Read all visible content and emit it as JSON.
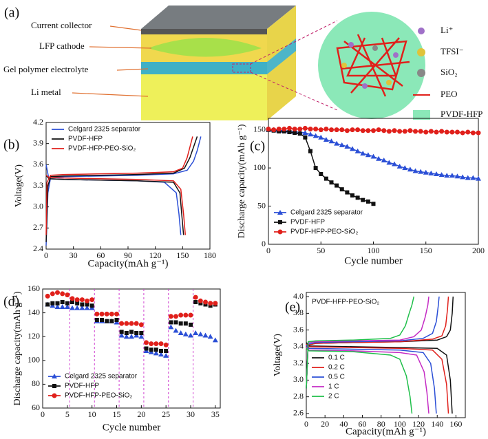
{
  "panel_a": {
    "label": "(a)",
    "layers": [
      "Current collector",
      "LFP cathode",
      "Gel polymer electrolyte",
      "Li metal"
    ],
    "legend": [
      "Li⁺",
      "TFSI⁻",
      "SiO₂",
      "PEO",
      "PVDF-HFP"
    ]
  },
  "chart_data": [
    {
      "type": "line",
      "label": "(b)",
      "xlabel": "Capacity(mAh g⁻¹)",
      "ylabel": "Voltage(V)",
      "xlim": [
        0,
        180
      ],
      "xticks": [
        0,
        30,
        60,
        90,
        120,
        150,
        180
      ],
      "ylim": [
        2.4,
        4.2
      ],
      "yticks": [
        2.4,
        2.7,
        {
          "value": 3,
          "label": "3.0"
        },
        3.3,
        3.6,
        3.9,
        4.2
      ],
      "legend": "upper left",
      "series": [
        {
          "name": "Celgard 2325 separator",
          "color": "#2b4fd6",
          "x": [
            0,
            2,
            5,
            20,
            60,
            100,
            140,
            155,
            162,
            166,
            170,
            null,
            0,
            3,
            20,
            60,
            100,
            130,
            143,
            146,
            148
          ],
          "values": [
            2.45,
            3.2,
            3.42,
            3.43,
            3.44,
            3.45,
            3.47,
            3.52,
            3.65,
            3.8,
            4.0,
            null,
            3.6,
            3.4,
            3.39,
            3.38,
            3.37,
            3.35,
            3.2,
            2.9,
            2.6
          ]
        },
        {
          "name": "PVDF-HFP",
          "color": "#111111",
          "x": [
            0,
            2,
            5,
            20,
            60,
            100,
            140,
            152,
            158,
            162,
            166,
            null,
            0,
            3,
            20,
            60,
            100,
            140,
            147,
            149,
            151
          ],
          "values": [
            2.5,
            3.3,
            3.43,
            3.44,
            3.45,
            3.46,
            3.48,
            3.55,
            3.7,
            3.85,
            4.0,
            null,
            3.45,
            3.4,
            3.39,
            3.38,
            3.37,
            3.35,
            3.2,
            2.9,
            2.6
          ]
        },
        {
          "name": "PVDF-HFP-PEO-SiO₂",
          "color": "#e0201b",
          "x": [
            0,
            1,
            5,
            20,
            60,
            100,
            140,
            150,
            155,
            158,
            161,
            null,
            0,
            3,
            20,
            60,
            100,
            140,
            148,
            151,
            153
          ],
          "values": [
            2.6,
            3.35,
            3.45,
            3.46,
            3.47,
            3.48,
            3.5,
            3.55,
            3.7,
            3.85,
            4.0,
            null,
            3.45,
            3.42,
            3.41,
            3.4,
            3.39,
            3.37,
            3.25,
            2.9,
            2.6
          ]
        }
      ]
    },
    {
      "type": "line",
      "label": "(c)",
      "xlabel": "Cycle number",
      "ylabel": "Discharge capacity(mAh g⁻¹)",
      "xlim": [
        0,
        200
      ],
      "xticks": [
        0,
        50,
        100,
        150,
        200
      ],
      "ylim": [
        0,
        165
      ],
      "yticks": [
        0,
        50,
        100,
        150
      ],
      "legend": "lower left",
      "series": [
        {
          "name": "Celgard 2325 separator",
          "color": "#2b4fd6",
          "marker": "triangle",
          "x": [
            0,
            5,
            10,
            15,
            20,
            25,
            30,
            35,
            40,
            45,
            50,
            55,
            60,
            65,
            70,
            75,
            80,
            85,
            90,
            95,
            100,
            105,
            110,
            115,
            120,
            125,
            130,
            135,
            140,
            145,
            150,
            155,
            160,
            165,
            170,
            175,
            180,
            185,
            190,
            195,
            200
          ],
          "values": [
            150,
            150,
            149,
            149,
            148,
            147,
            147,
            146,
            144,
            142,
            140,
            137,
            135,
            132,
            130,
            128,
            125,
            122,
            119,
            117,
            115,
            112,
            110,
            107,
            105,
            102,
            100,
            98,
            96,
            95,
            94,
            93,
            92,
            91,
            90,
            90,
            89,
            88,
            87,
            87,
            86
          ]
        },
        {
          "name": "PVDF-HFP",
          "color": "#111111",
          "marker": "square",
          "x": [
            0,
            5,
            10,
            15,
            20,
            25,
            30,
            35,
            40,
            45,
            50,
            55,
            60,
            65,
            70,
            75,
            80,
            85,
            90,
            95,
            100
          ],
          "values": [
            150,
            149,
            148,
            148,
            147,
            146,
            145,
            140,
            122,
            100,
            92,
            86,
            81,
            77,
            72,
            68,
            64,
            61,
            58,
            56,
            53
          ]
        },
        {
          "name": "PVDF-HFP-PEO-SiO₂",
          "color": "#e0201b",
          "marker": "circle",
          "x": [
            0,
            5,
            10,
            15,
            20,
            25,
            30,
            35,
            40,
            45,
            50,
            55,
            60,
            65,
            70,
            75,
            80,
            85,
            90,
            95,
            100,
            105,
            110,
            115,
            120,
            125,
            130,
            135,
            140,
            145,
            150,
            155,
            160,
            165,
            170,
            175,
            180,
            185,
            190,
            195,
            200
          ],
          "values": [
            151,
            150,
            151,
            151,
            152,
            151,
            151,
            152,
            151,
            151,
            150,
            151,
            150,
            150,
            150,
            149,
            150,
            150,
            149,
            149,
            149,
            150,
            149,
            148,
            149,
            148,
            148,
            149,
            148,
            148,
            147,
            148,
            147,
            148,
            147,
            147,
            147,
            146,
            147,
            146,
            146
          ]
        }
      ]
    },
    {
      "type": "scatter",
      "label": "(d)",
      "xlabel": "Cycle number",
      "ylabel": "Discharge capacity(mAh g⁻¹)",
      "xlim": [
        0,
        36
      ],
      "xticks": [
        0,
        5,
        10,
        15,
        20,
        25,
        30,
        35
      ],
      "ylim": [
        60,
        160
      ],
      "yticks": [
        60,
        80,
        100,
        120,
        140,
        160
      ],
      "legend": "lower left",
      "series": [
        {
          "name": "Celgard 2325 separator",
          "color": "#2b4fd6",
          "marker": "triangle",
          "x": [
            1,
            2,
            3,
            4,
            5,
            6,
            7,
            8,
            9,
            10,
            11,
            12,
            13,
            14,
            15,
            16,
            17,
            18,
            19,
            20,
            21,
            22,
            23,
            24,
            25,
            26,
            27,
            28,
            29,
            30,
            31,
            32,
            33,
            34,
            35
          ],
          "values": [
            147,
            146,
            145,
            145,
            145,
            144,
            144,
            144,
            144,
            144,
            133,
            133,
            133,
            133,
            132,
            121,
            120,
            120,
            121,
            120,
            108,
            107,
            106,
            105,
            104,
            128,
            125,
            123,
            122,
            121,
            123,
            122,
            121,
            120,
            117
          ]
        },
        {
          "name": "PVDF-HFP",
          "color": "#111111",
          "marker": "square",
          "x": [
            1,
            2,
            3,
            4,
            5,
            6,
            7,
            8,
            9,
            10,
            11,
            12,
            13,
            14,
            15,
            16,
            17,
            18,
            19,
            20,
            21,
            22,
            23,
            24,
            25,
            26,
            27,
            28,
            29,
            30,
            31,
            32,
            33,
            34,
            35
          ],
          "values": [
            147,
            148,
            148,
            149,
            148,
            149,
            148,
            147,
            147,
            146,
            134,
            134,
            133,
            133,
            134,
            124,
            123,
            124,
            123,
            123,
            110,
            109,
            109,
            108,
            108,
            132,
            132,
            131,
            131,
            130,
            149,
            148,
            147,
            146,
            147
          ]
        },
        {
          "name": "PVDF-HFP-PEO-SiO₂",
          "color": "#e0201b",
          "marker": "circle",
          "x": [
            1,
            2,
            3,
            4,
            5,
            6,
            7,
            8,
            9,
            10,
            11,
            12,
            13,
            14,
            15,
            16,
            17,
            18,
            19,
            20,
            21,
            22,
            23,
            24,
            25,
            26,
            27,
            28,
            29,
            30,
            31,
            32,
            33,
            34,
            35
          ],
          "values": [
            154,
            156,
            157,
            156,
            155,
            152,
            151,
            151,
            150,
            151,
            139,
            139,
            139,
            139,
            139,
            131,
            131,
            131,
            131,
            130,
            115,
            114,
            114,
            114,
            113,
            137,
            137,
            138,
            138,
            138,
            153,
            150,
            149,
            148,
            148
          ]
        }
      ]
    },
    {
      "type": "line",
      "label": "(e)",
      "xlabel": "Capacity(mAh g⁻¹)",
      "ylabel": "Voltage(V)",
      "annotation": "PVDF-HFP-PEO-SiO₂",
      "xlim": [
        0,
        170
      ],
      "xticks": [
        0,
        20,
        40,
        60,
        80,
        100,
        120,
        140,
        160
      ],
      "ylim": [
        2.55,
        4.05
      ],
      "yticks": [
        2.6,
        2.8,
        {
          "value": 3,
          "label": "3.0"
        },
        3.2,
        3.4,
        3.6,
        3.8,
        {
          "value": 4,
          "label": "4.0"
        }
      ],
      "legend": "center left",
      "series": [
        {
          "name": "0.1 C",
          "color": "#111111",
          "x": [
            0,
            2,
            10,
            50,
            100,
            140,
            150,
            154,
            156,
            157,
            null,
            0,
            3,
            50,
            100,
            140,
            150,
            154,
            156
          ],
          "values": [
            2.9,
            3.42,
            3.44,
            3.45,
            3.46,
            3.48,
            3.52,
            3.6,
            3.8,
            4.0,
            null,
            3.45,
            3.41,
            3.4,
            3.39,
            3.38,
            3.3,
            3.0,
            2.6
          ]
        },
        {
          "name": "0.2 C",
          "color": "#e0201b",
          "x": [
            0,
            2,
            10,
            50,
            100,
            135,
            145,
            149,
            151,
            152,
            null,
            0,
            3,
            50,
            100,
            135,
            145,
            150,
            152
          ],
          "values": [
            2.9,
            3.42,
            3.44,
            3.45,
            3.46,
            3.49,
            3.53,
            3.65,
            3.85,
            4.0,
            null,
            3.43,
            3.4,
            3.39,
            3.38,
            3.36,
            3.25,
            2.95,
            2.6
          ]
        },
        {
          "name": "0.5 C",
          "color": "#2b4fd6",
          "x": [
            0,
            2,
            10,
            50,
            100,
            125,
            135,
            139,
            141,
            142,
            null,
            0,
            3,
            50,
            100,
            125,
            133,
            137,
            139
          ],
          "values": [
            2.9,
            3.43,
            3.45,
            3.46,
            3.47,
            3.5,
            3.56,
            3.7,
            3.88,
            4.0,
            null,
            3.42,
            3.38,
            3.37,
            3.36,
            3.33,
            3.2,
            2.9,
            2.6
          ]
        },
        {
          "name": "1 C",
          "color": "#c42bc4",
          "x": [
            0,
            2,
            10,
            50,
            100,
            115,
            123,
            127,
            130,
            131,
            null,
            0,
            3,
            50,
            100,
            118,
            126,
            129,
            131
          ],
          "values": [
            2.9,
            3.45,
            3.46,
            3.47,
            3.48,
            3.52,
            3.6,
            3.75,
            3.9,
            4.0,
            null,
            3.4,
            3.36,
            3.35,
            3.33,
            3.3,
            3.1,
            2.85,
            2.6
          ]
        },
        {
          "name": "2 C",
          "color": "#1fbf4a",
          "x": [
            0,
            2,
            10,
            50,
            90,
            100,
            106,
            110,
            113,
            115,
            null,
            0,
            3,
            50,
            90,
            100,
            107,
            111,
            113
          ],
          "values": [
            2.9,
            3.46,
            3.47,
            3.48,
            3.5,
            3.54,
            3.65,
            3.8,
            3.9,
            4.0,
            null,
            3.38,
            3.35,
            3.34,
            3.3,
            3.25,
            3.05,
            2.8,
            2.6
          ]
        }
      ]
    }
  ]
}
